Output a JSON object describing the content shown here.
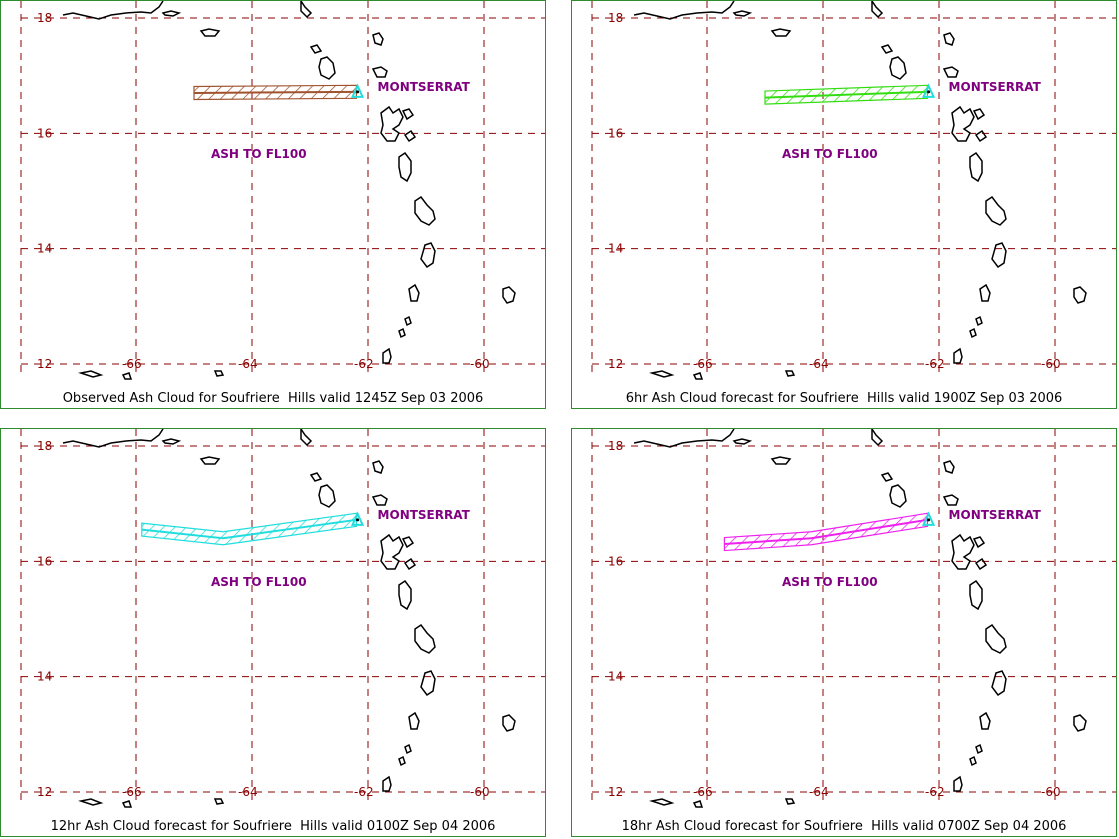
{
  "map": {
    "lat_ticks": [
      18,
      16,
      14,
      12
    ],
    "lon_ticks": [
      -66,
      -64,
      -62,
      -60
    ],
    "lat_labels": [
      "18",
      "16",
      "14",
      "12"
    ],
    "lon_labels": [
      "-66",
      "-64",
      "-62",
      "-60"
    ],
    "colors": {
      "grid": "#8b0000",
      "coast": "#000000",
      "label": "#800080",
      "border": "#2e8b2e"
    },
    "volcano_label": "MONTSERRAT",
    "ash_label": "ASH TO FL100",
    "volcano": {
      "lon": -62.18,
      "lat": 16.72
    }
  },
  "panels": [
    {
      "caption": "Observed Ash Cloud for Soufriere  Hills valid 1245Z Sep 03 2006",
      "ash_color": "#a0522d",
      "plume": [
        [
          -65.0,
          16.7
        ],
        [
          -62.2,
          16.72
        ]
      ]
    },
    {
      "caption": "6hr Ash Cloud forecast for Soufriere  Hills valid 1900Z Sep 03 2006",
      "ash_color": "#33dd11",
      "plume": [
        [
          -65.0,
          16.62
        ],
        [
          -62.2,
          16.72
        ]
      ]
    },
    {
      "caption": "12hr Ash Cloud forecast for Soufriere  Hills valid 0100Z Sep 04 2006",
      "ash_color": "#22dddd",
      "plume": [
        [
          -65.9,
          16.55
        ],
        [
          -64.5,
          16.4
        ],
        [
          -62.2,
          16.72
        ]
      ]
    },
    {
      "caption": "18hr Ash Cloud forecast for Soufriere  Hills valid 0700Z Sep 04 2006",
      "ash_color": "#ee22ee",
      "plume": [
        [
          -65.7,
          16.3
        ],
        [
          -64.2,
          16.4
        ],
        [
          -62.2,
          16.72
        ]
      ]
    }
  ]
}
